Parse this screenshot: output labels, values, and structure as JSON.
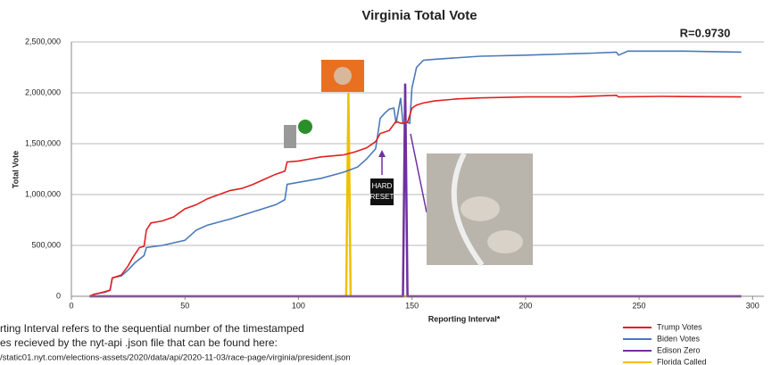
{
  "chart_data": {
    "type": "line",
    "title": "Virginia Total Vote",
    "annotation": "R=0.9730",
    "x_label": "Reporting Interval*",
    "y_label": "Total Vote",
    "image_label": "HARD\nRESET",
    "footnote": [
      "rting Interval refers to the sequential number of the timestamped",
      "es recieved by the nyt-api .json file that can be found here:",
      "/static01.nyt.com/elections-assets/2020/data/api/2020-11-03/race-page/virginia/president.json"
    ],
    "xlim": [
      0,
      305
    ],
    "ylim": [
      0,
      2500000
    ],
    "xticks": [
      0,
      50,
      100,
      150,
      200,
      250,
      300
    ],
    "yticks": [
      {
        "value": 0,
        "label": "0"
      },
      {
        "value": 500000,
        "label": "500,000"
      },
      {
        "value": 1000000,
        "label": "1,000,000"
      },
      {
        "value": 1500000,
        "label": "1,500,000"
      },
      {
        "value": 2000000,
        "label": "2,000,000"
      },
      {
        "value": 2500000,
        "label": "2,500,000"
      }
    ],
    "grid": true,
    "legend": "lower right",
    "series": [
      {
        "name": "Trump Votes",
        "color": "#e02020",
        "x": [
          8,
          10,
          14,
          17,
          18,
          22,
          25,
          27,
          30,
          32,
          33,
          35,
          40,
          45,
          50,
          55,
          60,
          65,
          70,
          75,
          80,
          85,
          90,
          94,
          95,
          100,
          105,
          110,
          115,
          120,
          125,
          130,
          134,
          136,
          140,
          143,
          145,
          148,
          150,
          152,
          155,
          160,
          170,
          180,
          200,
          220,
          240,
          241,
          260,
          295
        ],
        "values": [
          0,
          20000,
          40000,
          60000,
          180000,
          210000,
          300000,
          380000,
          480000,
          490000,
          650000,
          720000,
          740000,
          780000,
          860000,
          900000,
          960000,
          1000000,
          1040000,
          1060000,
          1100000,
          1150000,
          1200000,
          1230000,
          1320000,
          1330000,
          1350000,
          1370000,
          1380000,
          1390000,
          1420000,
          1460000,
          1520000,
          1600000,
          1630000,
          1720000,
          1700000,
          1710000,
          1850000,
          1880000,
          1900000,
          1920000,
          1940000,
          1950000,
          1960000,
          1960000,
          1975000,
          1960000,
          1965000,
          1960000
        ]
      },
      {
        "name": "Biden Votes",
        "color": "#4a7ab8",
        "x": [
          8,
          10,
          15,
          17,
          18,
          22,
          25,
          28,
          32,
          33,
          40,
          50,
          55,
          60,
          70,
          80,
          90,
          94,
          95,
          100,
          110,
          120,
          126,
          130,
          134,
          136,
          138,
          140,
          142,
          143,
          145,
          146,
          147,
          149,
          150,
          151,
          152,
          155,
          160,
          180,
          200,
          230,
          240,
          241,
          245,
          270,
          295
        ],
        "values": [
          0,
          20000,
          40000,
          60000,
          180000,
          200000,
          260000,
          330000,
          400000,
          480000,
          500000,
          550000,
          650000,
          700000,
          760000,
          830000,
          900000,
          950000,
          1100000,
          1120000,
          1160000,
          1220000,
          1270000,
          1350000,
          1450000,
          1750000,
          1800000,
          1840000,
          1850000,
          1700000,
          1950000,
          1700000,
          1720000,
          1700000,
          2050000,
          2150000,
          2250000,
          2320000,
          2330000,
          2360000,
          2370000,
          2390000,
          2400000,
          2370000,
          2410000,
          2410000,
          2400000
        ]
      },
      {
        "name": "Edison Zero",
        "color": "#7030a0",
        "x": [
          8,
          146,
          147,
          148,
          295
        ],
        "values": [
          0,
          0,
          2090000,
          0,
          0
        ]
      },
      {
        "name": "Florida Called",
        "color": "#f0c000",
        "x": [
          8,
          121,
          122,
          123,
          295
        ],
        "values": [
          0,
          0,
          2000000,
          0,
          0
        ]
      }
    ]
  }
}
